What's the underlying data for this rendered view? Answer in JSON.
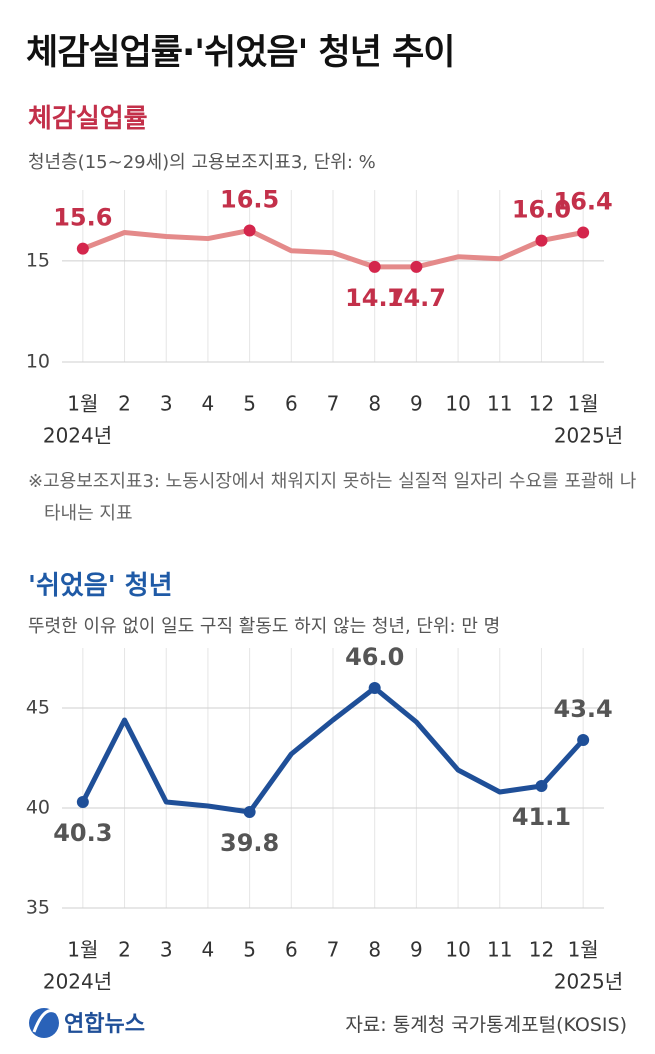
{
  "title": "체감실업률·'쉬었음' 청년 추이",
  "chart_data": [
    {
      "type": "line",
      "title": "체감실업률",
      "subtitle": "청년층(15~29세)의 고용보조지표3, 단위: %",
      "note": "※고용보조지표3: 노동시장에서 채워지지 못하는 실질적 일자리 수요를 포괄해 나타내는 지표",
      "categories": [
        "1월",
        "2",
        "3",
        "4",
        "5",
        "6",
        "7",
        "8",
        "9",
        "10",
        "11",
        "12",
        "1월"
      ],
      "year_labels": [
        "2024년",
        null,
        null,
        null,
        null,
        null,
        null,
        null,
        null,
        null,
        null,
        null,
        "2025년"
      ],
      "values": [
        15.6,
        16.4,
        16.2,
        16.1,
        16.5,
        15.5,
        15.4,
        14.7,
        14.7,
        15.2,
        15.1,
        16.0,
        16.4
      ],
      "value_labels": [
        "15.6",
        null,
        null,
        null,
        "16.5",
        null,
        null,
        "14.7",
        "14.7",
        null,
        null,
        "16.0",
        "16.4"
      ],
      "color": "#e48a8a",
      "marker_color": "#d4264c",
      "label_color": "#c3304a",
      "title_color": "#c3304a",
      "ylim": [
        10,
        18.5
      ],
      "yticks": [
        10,
        15
      ],
      "grid": true
    },
    {
      "type": "line",
      "title": "'쉬었음' 청년",
      "subtitle": "뚜렷한 이유 없이 일도 구직 활동도 하지 않는 청년, 단위: 만 명",
      "categories": [
        "1월",
        "2",
        "3",
        "4",
        "5",
        "6",
        "7",
        "8",
        "9",
        "10",
        "11",
        "12",
        "1월"
      ],
      "year_labels": [
        "2024년",
        null,
        null,
        null,
        null,
        null,
        null,
        null,
        null,
        null,
        null,
        null,
        "2025년"
      ],
      "values": [
        40.3,
        44.4,
        40.3,
        40.1,
        39.8,
        42.7,
        44.4,
        46.0,
        44.3,
        41.9,
        40.8,
        41.1,
        43.4
      ],
      "value_labels": [
        "40.3",
        null,
        null,
        null,
        "39.8",
        null,
        null,
        "46.0",
        null,
        null,
        null,
        "41.1",
        "43.4"
      ],
      "color": "#1f4f98",
      "marker_color": "#1f4f98",
      "label_color": "#555555",
      "title_color": "#1f5aa6",
      "ylim": [
        35,
        48
      ],
      "yticks": [
        35,
        40,
        45
      ],
      "grid": true
    }
  ],
  "footer": {
    "logo": "연합뉴스",
    "source": "자료: 통계청 국가통계포털(KOSIS)"
  }
}
